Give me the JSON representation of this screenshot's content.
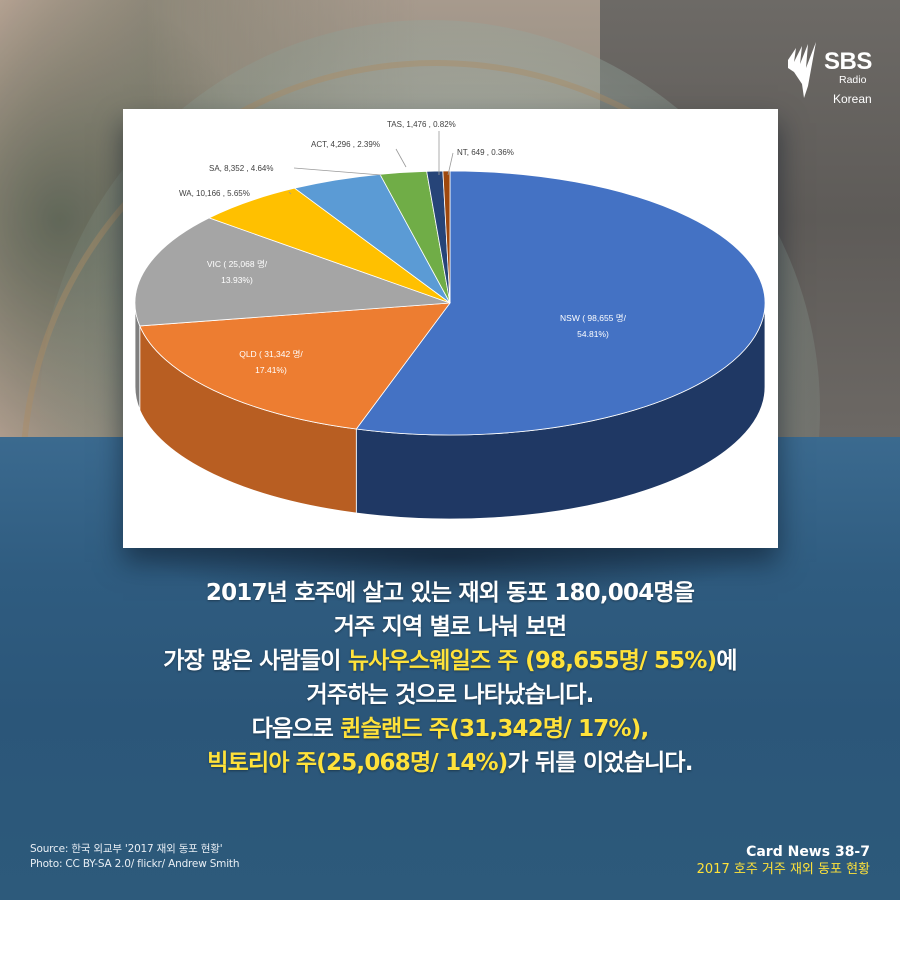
{
  "brand": {
    "logo_text": "SBS",
    "logo_sub": "Radio",
    "language": "Korean"
  },
  "chart_data": {
    "type": "pie",
    "style": "3d-exploded-none",
    "title": "",
    "unit": "명",
    "total": 180004,
    "categories": [
      "NSW",
      "QLD",
      "VIC",
      "WA",
      "SA",
      "ACT",
      "TAS",
      "NT"
    ],
    "values": [
      98655,
      31342,
      25068,
      10166,
      8352,
      4296,
      1476,
      649
    ],
    "percents": [
      54.81,
      17.41,
      13.93,
      5.65,
      4.64,
      2.39,
      0.82,
      0.36
    ],
    "colors": [
      "#4472c4",
      "#ed7d31",
      "#a5a5a5",
      "#ffc000",
      "#5b9bd5",
      "#70ad47",
      "#264478",
      "#9e480e"
    ],
    "side_colors": [
      "#1f3864",
      "#b85e22",
      "#7f7f7f",
      "#bf9000",
      "#2e75b6",
      "#507e32",
      "#172a4a",
      "#6d3209"
    ],
    "labels": [
      {
        "text1": "NSW ( 98,655 명/",
        "text2": "54.81%)",
        "position": "inside"
      },
      {
        "text1": "QLD ( 31,342 명/",
        "text2": "17.41%)",
        "position": "inside"
      },
      {
        "text1": "VIC ( 25,068 명/",
        "text2": "13.93%)",
        "position": "inside"
      },
      {
        "text1": "WA,  10,166 , 5.65%",
        "position": "outside"
      },
      {
        "text1": "SA,  8,352 , 4.64%",
        "position": "outside"
      },
      {
        "text1": "ACT,  4,296 , 2.39%",
        "position": "outside"
      },
      {
        "text1": "TAS, 1,476 , 0.82%",
        "position": "outside"
      },
      {
        "text1": "NT,  649 , 0.36%",
        "position": "outside"
      }
    ],
    "legend": "none",
    "grid": false
  },
  "headline": {
    "line1": "2017년 호주에 살고 있는 재외 동포 180,004명을",
    "line2": "거주 지역 별로 나눠 보면",
    "line3_pre": "가장 많은 사람들이 ",
    "line3_hl": "뉴사우스웨일즈 주 (98,655명/ 55%)",
    "line3_post": "에",
    "line4": "거주하는 것으로 나타났습니다.",
    "line5_pre": "다음으로 ",
    "line5_hl": "퀸슬랜드 주",
    "line5_post": "(31,342명/ 17%),",
    "line6_hl": "빅토리아 주",
    "line6_mid": "(25,068명/ 14%)",
    "line6_post": "가 뒤를 이었습니다."
  },
  "footer": {
    "source": "Source: 한국 외교부 '2017 재외 동포 현황'",
    "photo": "Photo: CC BY-SA 2.0/ flickr/ Andrew Smith",
    "card_number": "Card News 38-7",
    "card_title": "2017 호주 거주 재외 동포 현황"
  },
  "colors": {
    "highlight": "#ffe23a",
    "band": "#2f5c80",
    "text": "#ffffff"
  }
}
